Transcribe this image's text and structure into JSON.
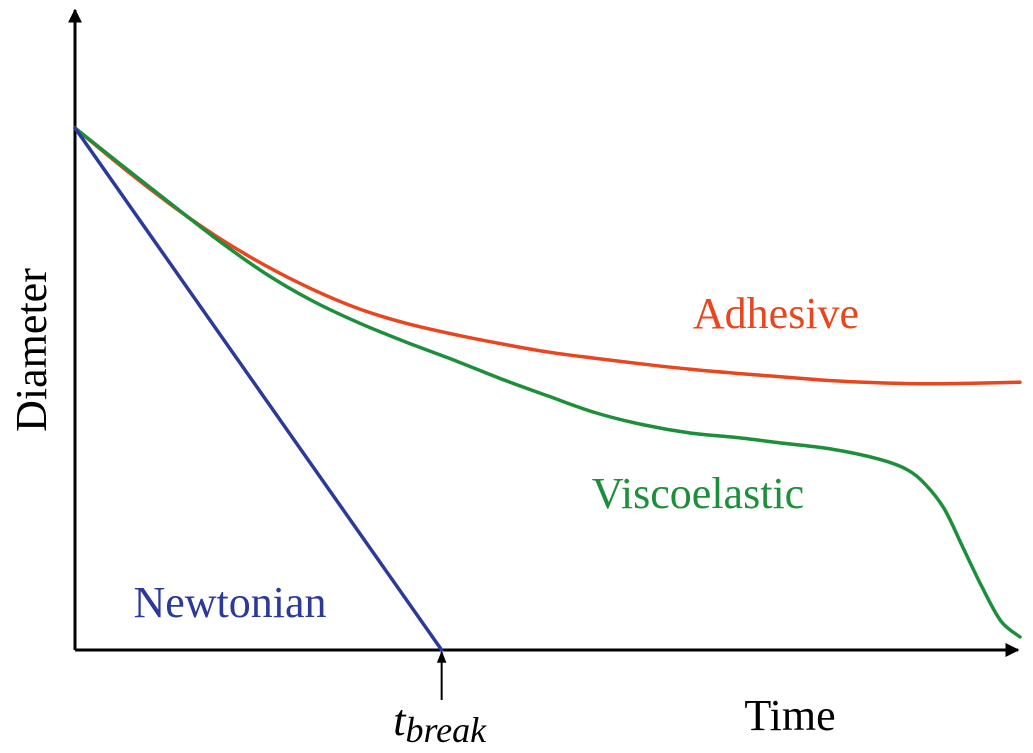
{
  "chart_data": {
    "type": "line",
    "title": "",
    "xlabel": "Time",
    "ylabel": "Diameter",
    "xlim": [
      0,
      100
    ],
    "ylim": [
      0,
      100
    ],
    "grid": false,
    "legend": "inline",
    "colors": {
      "axis": "#000000",
      "newtonian": "#2b3a9a",
      "adhesive": "#e8461f",
      "viscoelastic": "#1d8f3a"
    },
    "series": [
      {
        "name": "Newtonian",
        "color": "#2b3a9a",
        "x": [
          0,
          38.8
        ],
        "y": [
          100,
          0
        ]
      },
      {
        "name": "Adhesive",
        "color": "#e8461f",
        "x": [
          0,
          5,
          10,
          15,
          20,
          25,
          30,
          35,
          40,
          45,
          50,
          55,
          60,
          65,
          70,
          75,
          80,
          85,
          90,
          95,
          100
        ],
        "y": [
          100,
          92.5,
          85.5,
          79.2,
          73.8,
          69.2,
          65.4,
          62.6,
          60.5,
          58.7,
          57.1,
          55.9,
          54.8,
          53.8,
          53.0,
          52.3,
          51.6,
          51.2,
          51.0,
          51.1,
          51.3
        ]
      },
      {
        "name": "Viscoelastic",
        "color": "#1d8f3a",
        "x": [
          0,
          5,
          10,
          15,
          20,
          25,
          30,
          35,
          40,
          45,
          50,
          55,
          60,
          65,
          70,
          75,
          80,
          85,
          88,
          90,
          92,
          94,
          96,
          98,
          100
        ],
        "y": [
          100,
          92.8,
          85.7,
          78.7,
          72.3,
          67.0,
          62.7,
          59.0,
          55.6,
          52.0,
          48.7,
          45.5,
          43.2,
          41.6,
          40.7,
          39.6,
          38.5,
          36.6,
          34.6,
          31.7,
          27.0,
          19.5,
          12.0,
          5.5,
          2.5
        ]
      }
    ],
    "annotations": [
      {
        "text_main": "t",
        "text_sub": "break",
        "x": 38.8
      }
    ]
  }
}
